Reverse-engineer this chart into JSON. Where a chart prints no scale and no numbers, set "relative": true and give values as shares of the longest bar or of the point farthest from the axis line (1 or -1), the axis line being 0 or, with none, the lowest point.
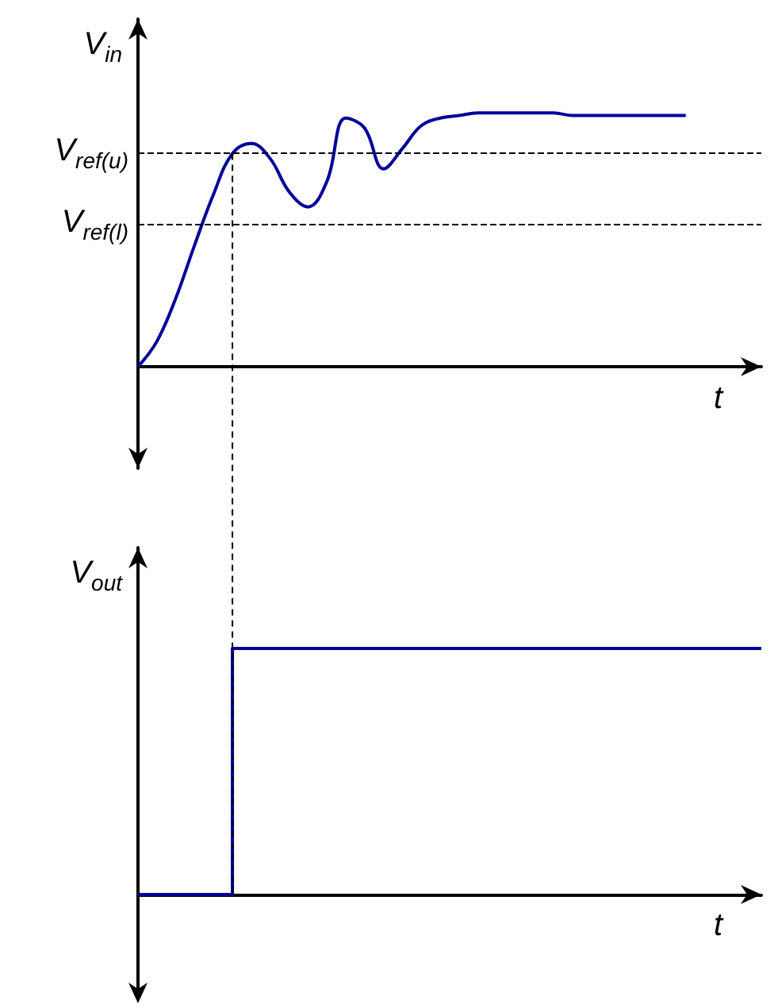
{
  "chart_data": [
    {
      "type": "line",
      "relative": true,
      "ylabel": "V$_{in}$",
      "xlabel": "t",
      "grid": false,
      "categories": [
        null,
        null,
        null,
        null,
        null,
        null,
        null,
        null,
        null,
        null,
        null,
        null,
        null,
        null,
        null,
        null,
        null,
        null,
        null,
        null,
        null,
        null,
        null,
        null,
        null,
        null,
        null,
        null,
        null,
        null,
        null,
        null,
        null,
        null
      ],
      "series": [
        {
          "color": "#000099",
          "values": [
            0,
            0.1,
            0.27,
            0.48,
            0.68,
            0.84,
            0.88,
            0.82,
            0.69,
            0.63,
            0.73,
            0.98,
            0.94,
            0.78,
            0.86,
            0.95,
            0.98,
            0.99,
            1,
            1,
            1,
            1,
            1,
            0.99,
            0.99,
            0.99,
            0.99,
            0.99,
            0.99,
            0.99,
            null,
            null,
            null,
            null
          ]
        }
      ],
      "ref_lines": [
        {
          "axis": "y",
          "value": 0.84,
          "label": "V$_{ref(u)}$",
          "color": "#000000",
          "line_style": "dashed"
        },
        {
          "axis": "y",
          "value": 0.56,
          "label": "V$_{ref(l)}$",
          "color": "#000000",
          "line_style": "dashed"
        }
      ]
    },
    {
      "type": "step",
      "relative": true,
      "ylabel": "V$_{out}$",
      "xlabel": "t",
      "grid": false,
      "categories": [
        null,
        null,
        null,
        null,
        null,
        null,
        null,
        null,
        null,
        null,
        null,
        null,
        null,
        null,
        null,
        null,
        null,
        null,
        null,
        null,
        null,
        null,
        null,
        null,
        null,
        null,
        null,
        null,
        null,
        null,
        null,
        null,
        null,
        null
      ],
      "series": [
        {
          "color": "#000099",
          "values": [
            0,
            0,
            0,
            0,
            0,
            0,
            1,
            1,
            1,
            1,
            1,
            1,
            1,
            1,
            1,
            1,
            1,
            1,
            1,
            1,
            1,
            1,
            1,
            1,
            1,
            1,
            1,
            1,
            1,
            1,
            1,
            1,
            1,
            1
          ]
        }
      ]
    }
  ]
}
